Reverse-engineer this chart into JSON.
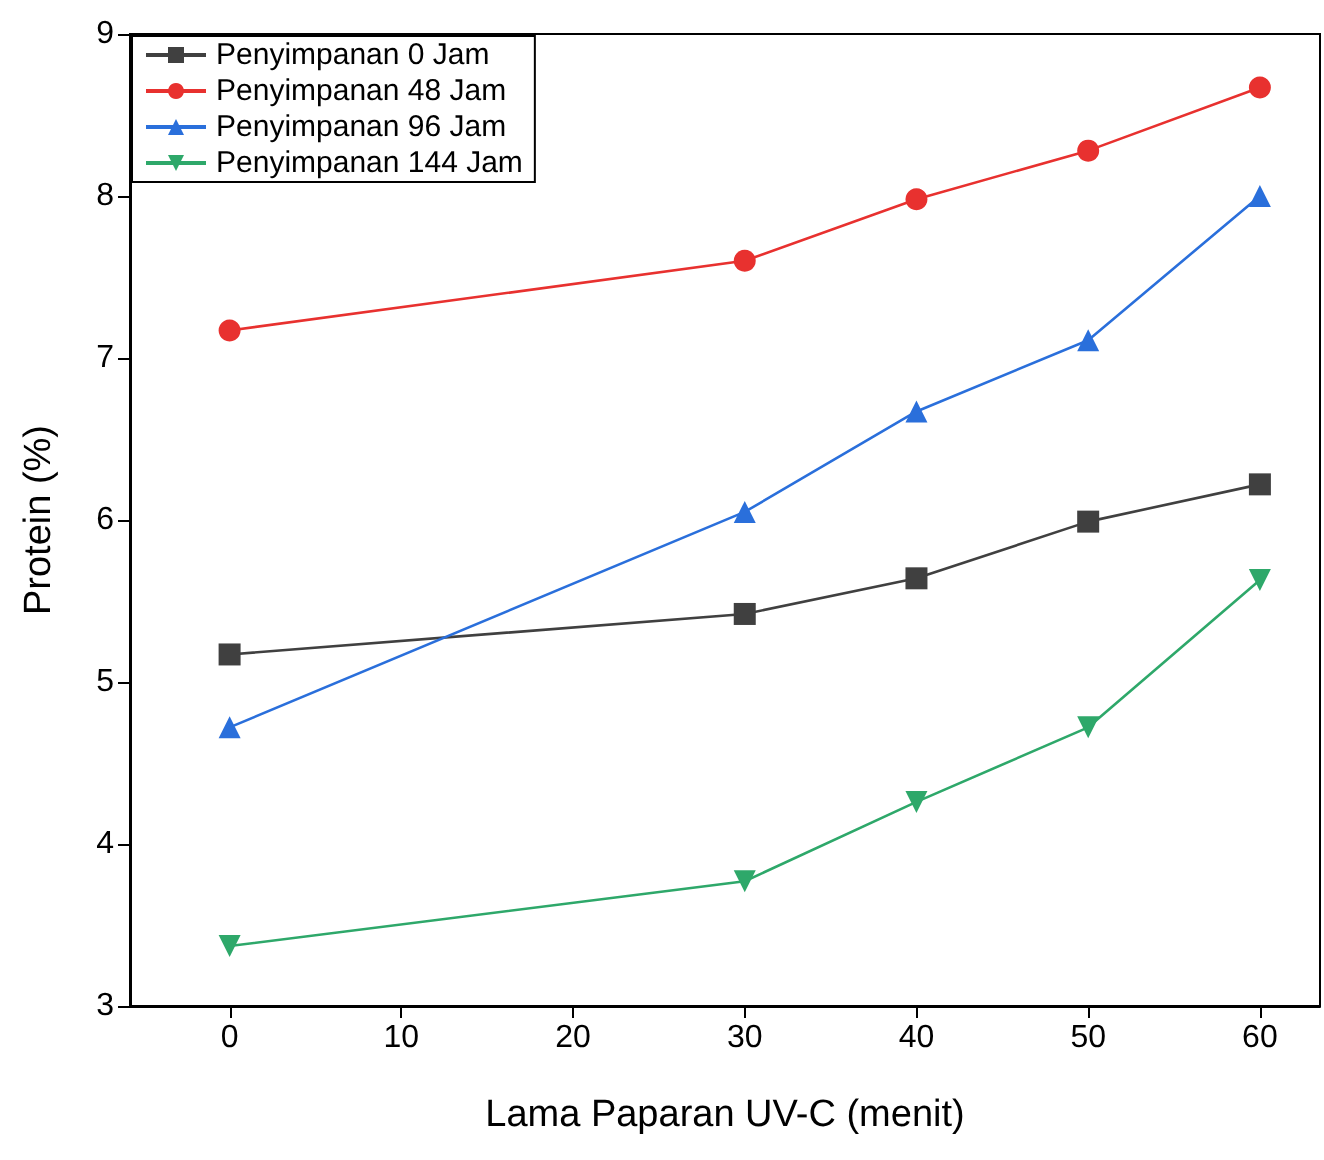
{
  "chart_data": {
    "type": "line",
    "xlabel": "Lama Paparan UV-C (menit)",
    "ylabel": "Protein (%)",
    "xlim": [
      -5.8,
      63.5
    ],
    "xticks": [
      0,
      10,
      20,
      30,
      40,
      50,
      60
    ],
    "ylim": [
      3,
      9
    ],
    "yticks": [
      3,
      4,
      5,
      6,
      7,
      8,
      9
    ],
    "x": [
      0,
      30,
      40,
      50,
      60
    ],
    "grid": false,
    "legend": "top left",
    "line_style": "solid",
    "series": [
      {
        "name": "Penyimpanan 0 Jam",
        "color": "#404040",
        "marker": "square",
        "values": [
          5.17,
          5.42,
          5.64,
          5.99,
          6.22
        ]
      },
      {
        "name": "Penyimpanan 48 Jam",
        "color": "#e8312f",
        "marker": "circle",
        "values": [
          7.17,
          7.6,
          7.98,
          8.28,
          8.67
        ]
      },
      {
        "name": "Penyimpanan 96 Jam",
        "color": "#2a6fdb",
        "marker": "triangle",
        "values": [
          4.72,
          6.05,
          6.67,
          7.11,
          8.0
        ]
      },
      {
        "name": "Penyimpanan 144 Jam",
        "color": "#2ea86a",
        "marker": "triangle-down",
        "values": [
          3.37,
          3.77,
          4.26,
          4.72,
          5.63
        ]
      }
    ]
  }
}
